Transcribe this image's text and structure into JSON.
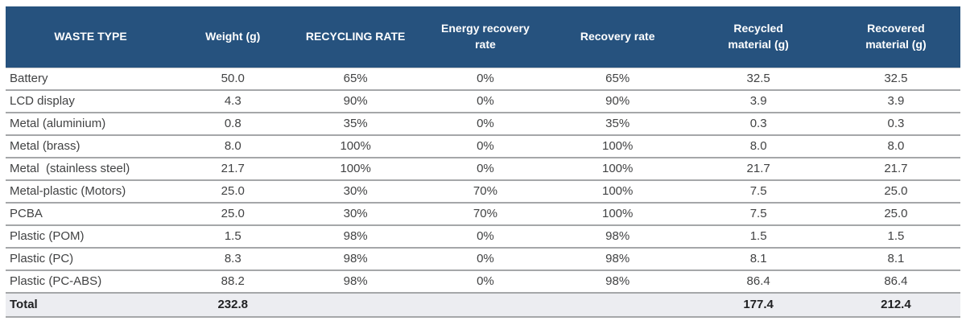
{
  "colors": {
    "header_bg": "#26527E",
    "header_text": "#FFFFFF",
    "row_text": "#414243",
    "divider": "#A5A7A9",
    "total_row_bg": "#ECEDF1",
    "total_row_text": "#1F2022",
    "page_bg": "#FFFFFF"
  },
  "chart_data": {
    "type": "table",
    "columns": [
      "WASTE TYPE",
      "Weight (g)",
      "RECYCLING RATE",
      "Energy recovery rate",
      "Recovery rate",
      "Recycled material (g)",
      "Recovered material (g)"
    ],
    "rows": [
      [
        "Battery",
        "50.0",
        "65%",
        "0%",
        "65%",
        "32.5",
        "32.5"
      ],
      [
        "LCD display",
        "4.3",
        "90%",
        "0%",
        "90%",
        "3.9",
        "3.9"
      ],
      [
        "Metal (aluminium)",
        "0.8",
        "35%",
        "0%",
        "35%",
        "0.3",
        "0.3"
      ],
      [
        "Metal (brass)",
        "8.0",
        "100%",
        "0%",
        "100%",
        "8.0",
        "8.0"
      ],
      [
        "Metal  (stainless steel)",
        "21.7",
        "100%",
        "0%",
        "100%",
        "21.7",
        "21.7"
      ],
      [
        "Metal-plastic (Motors)",
        "25.0",
        "30%",
        "70%",
        "100%",
        "7.5",
        "25.0"
      ],
      [
        "PCBA",
        "25.0",
        "30%",
        "70%",
        "100%",
        "7.5",
        "25.0"
      ],
      [
        "Plastic (POM)",
        "1.5",
        "98%",
        "0%",
        "98%",
        "1.5",
        "1.5"
      ],
      [
        "Plastic (PC)",
        "8.3",
        "98%",
        "0%",
        "98%",
        "8.1",
        "8.1"
      ],
      [
        "Plastic (PC-ABS)",
        "88.2",
        "98%",
        "0%",
        "98%",
        "86.4",
        "86.4"
      ]
    ],
    "total_row": [
      "Total",
      "232.8",
      "",
      "",
      "",
      "177.4",
      "212.4"
    ],
    "layout": {
      "header_style": "dark-blue band, white bold centered text",
      "body_style": "white rows separated by gray rules, first column left-aligned, values centered",
      "total_style": "light gray band, bold text"
    }
  }
}
